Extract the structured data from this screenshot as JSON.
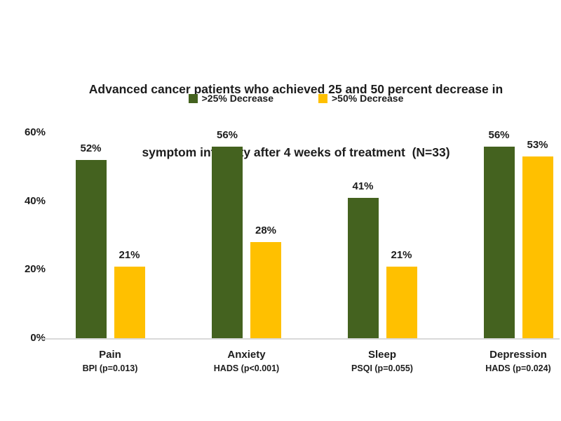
{
  "title": {
    "lines": [
      "Advanced cancer patients who achieved 25 and 50 percent decrease in",
      "symptom intensity after 4 weeks of treatment  (N=33)"
    ]
  },
  "legend": {
    "items": [
      {
        "label": ">25% Decrease",
        "color": "#44621F"
      },
      {
        "label": ">50% Decrease",
        "color": "#FFC000"
      }
    ]
  },
  "chart_data": {
    "type": "bar",
    "title": "Advanced cancer patients who achieved 25 and 50 percent decrease in symptom intensity after 4 weeks of treatment (N=33)",
    "categories": [
      "Pain",
      "Anxiety",
      "Sleep",
      "Depression"
    ],
    "category_sublabels": [
      "BPI (p=0.013)",
      "HADS (p<0.001)",
      "PSQI (p=0.055)",
      "HADS (p=0.024)"
    ],
    "series": [
      {
        "name": ">25% Decrease",
        "color": "#44621F",
        "values": [
          52,
          56,
          41,
          56
        ]
      },
      {
        "name": ">50% Decrease",
        "color": "#FFC000",
        "values": [
          21,
          28,
          21,
          53
        ]
      }
    ],
    "value_label_format": "percent",
    "xlabel": "",
    "ylabel": "",
    "ylim": [
      0,
      60
    ],
    "yticks": [
      {
        "value": 0,
        "label": "0%"
      },
      {
        "value": 20,
        "label": "20%"
      },
      {
        "value": 40,
        "label": "40%"
      },
      {
        "value": 60,
        "label": "60%"
      }
    ],
    "grid": false,
    "legend_position": "top",
    "axis_line_color": "#D9D9D9",
    "text_color": "#1C1C1C",
    "background_color": "#FFFFFF"
  }
}
